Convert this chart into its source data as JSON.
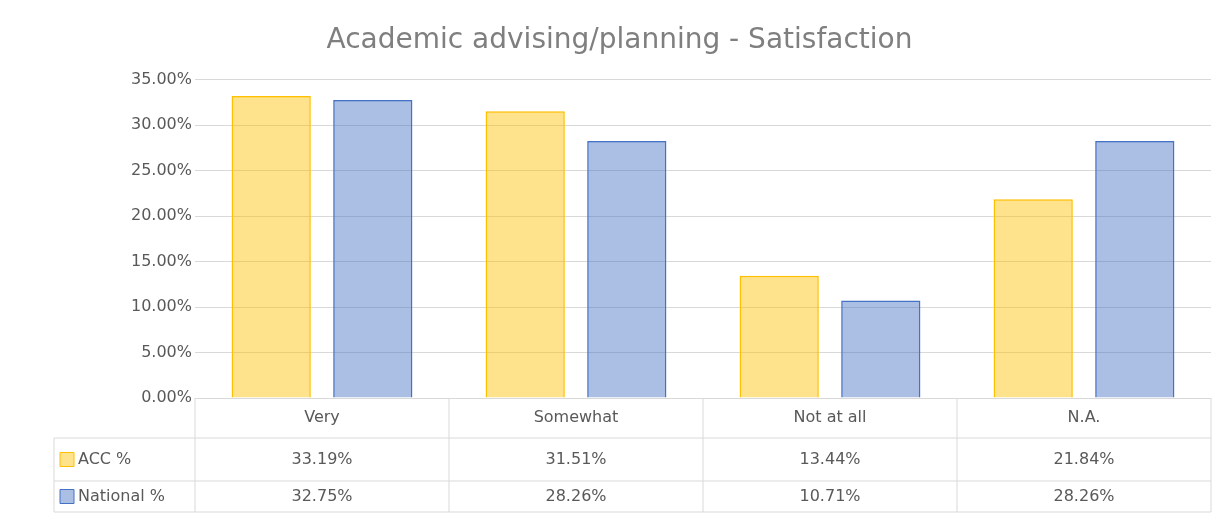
{
  "chart_data": {
    "type": "bar",
    "title": "Academic advising/planning - Satisfaction",
    "categories": [
      "Very",
      "Somewhat",
      "Not at all",
      "N.A."
    ],
    "series": [
      {
        "name": "ACC %",
        "color": "#ffc000",
        "values": [
          33.19,
          31.51,
          13.44,
          21.84
        ],
        "value_labels": [
          "33.19%",
          "31.51%",
          "13.44%",
          "21.84%"
        ]
      },
      {
        "name": "National %",
        "color": "#4472c4",
        "values": [
          32.75,
          28.26,
          10.71,
          28.26
        ],
        "value_labels": [
          "32.75%",
          "28.26%",
          "10.71%",
          "28.26%"
        ]
      }
    ],
    "ylim": [
      0,
      35
    ],
    "yticks": [
      {
        "value": 0,
        "label": "0.00%"
      },
      {
        "value": 5,
        "label": "5.00%"
      },
      {
        "value": 10,
        "label": "10.00%"
      },
      {
        "value": 15,
        "label": "15.00%"
      },
      {
        "value": 20,
        "label": "20.00%"
      },
      {
        "value": 25,
        "label": "25.00%"
      },
      {
        "value": 30,
        "label": "30.00%"
      },
      {
        "value": 35,
        "label": "35.00%"
      }
    ],
    "grid": "y",
    "legend": "bottom left"
  }
}
